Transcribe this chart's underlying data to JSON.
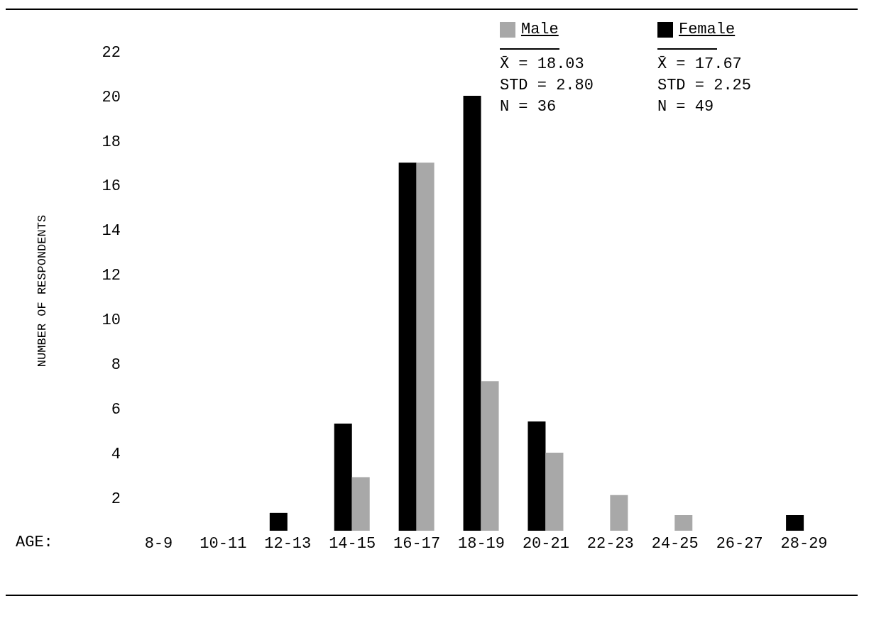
{
  "chart_data": {
    "type": "bar",
    "ylabel": "NUMBER OF RESPONDENTS",
    "xlabel": "AGE:",
    "categories": [
      "8-9",
      "10-11",
      "12-13",
      "14-15",
      "16-17",
      "18-19",
      "20-21",
      "22-23",
      "24-25",
      "26-27",
      "28-29"
    ],
    "series": [
      {
        "name": "Male",
        "color": "#a8a8a8",
        "values": [
          null,
          null,
          null,
          2.9,
          17,
          7.2,
          4,
          2.1,
          1.2,
          null,
          null
        ]
      },
      {
        "name": "Female",
        "color": "#000000",
        "values": [
          null,
          null,
          1.3,
          5.3,
          17,
          20,
          5.4,
          null,
          null,
          null,
          1.2
        ]
      }
    ],
    "ylim": [
      0.5,
      22
    ],
    "yticks": [
      2,
      4,
      6,
      8,
      10,
      12,
      14,
      16,
      18,
      20,
      22
    ],
    "grid": false,
    "legend": "top right",
    "annotations": [
      "X̄ = 18.03",
      "STD = 2.80",
      "N = 36",
      "X̄ = 17.67",
      "STD = 2.25",
      "N = 49"
    ]
  }
}
